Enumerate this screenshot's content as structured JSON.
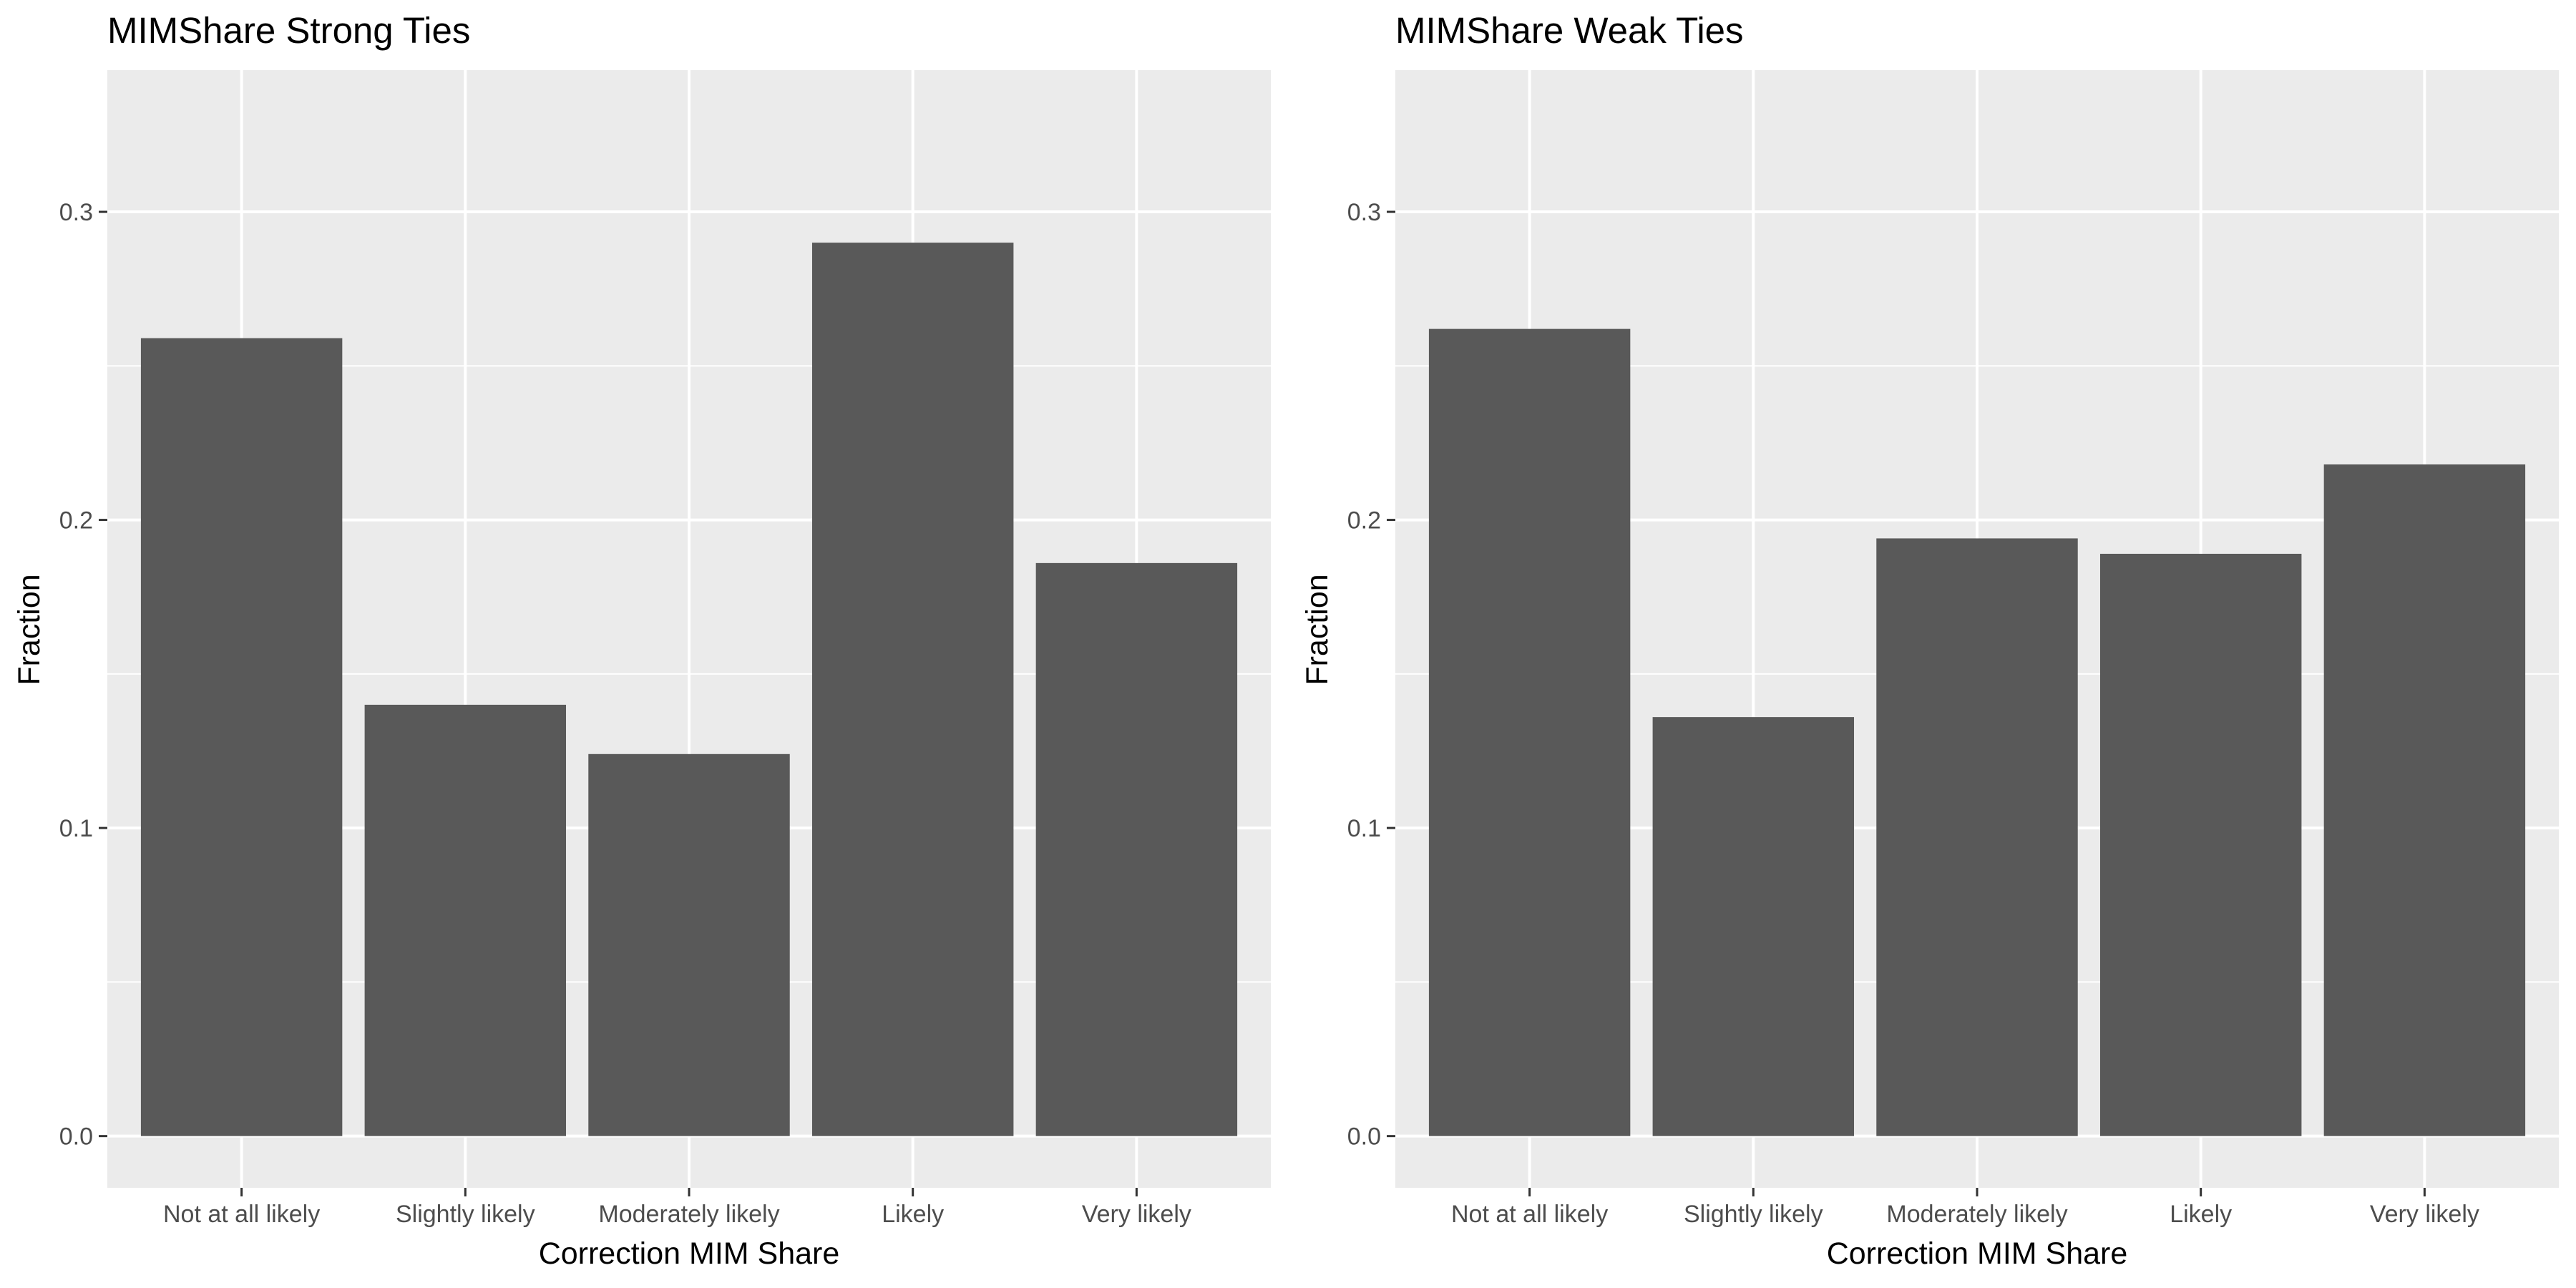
{
  "chart_data": [
    {
      "type": "bar",
      "title": "MIMShare Strong Ties",
      "xlabel": "Correction MIM Share",
      "ylabel": "Fraction",
      "categories": [
        "Not at all likely",
        "Slightly likely",
        "Moderately likely",
        "Likely",
        "Very likely"
      ],
      "values": [
        0.259,
        0.14,
        0.124,
        0.29,
        0.186
      ],
      "yticks": [
        "0.0",
        "0.1",
        "0.2",
        "0.3"
      ],
      "ylim": [
        -0.0168,
        0.346
      ],
      "grid": true,
      "legend": "none",
      "colors": {
        "bar": "#595959",
        "panel": "#ebebeb",
        "grid": "#ffffff",
        "tick": "#333333"
      }
    },
    {
      "type": "bar",
      "title": "MIMShare Weak Ties",
      "xlabel": "Correction MIM Share",
      "ylabel": "Fraction",
      "categories": [
        "Not at all likely",
        "Slightly likely",
        "Moderately likely",
        "Likely",
        "Very likely"
      ],
      "values": [
        0.262,
        0.136,
        0.194,
        0.189,
        0.218
      ],
      "yticks": [
        "0.0",
        "0.1",
        "0.2",
        "0.3"
      ],
      "ylim": [
        -0.0168,
        0.346
      ],
      "grid": true,
      "legend": "none",
      "colors": {
        "bar": "#595959",
        "panel": "#ebebeb",
        "grid": "#ffffff",
        "tick": "#333333"
      }
    }
  ]
}
